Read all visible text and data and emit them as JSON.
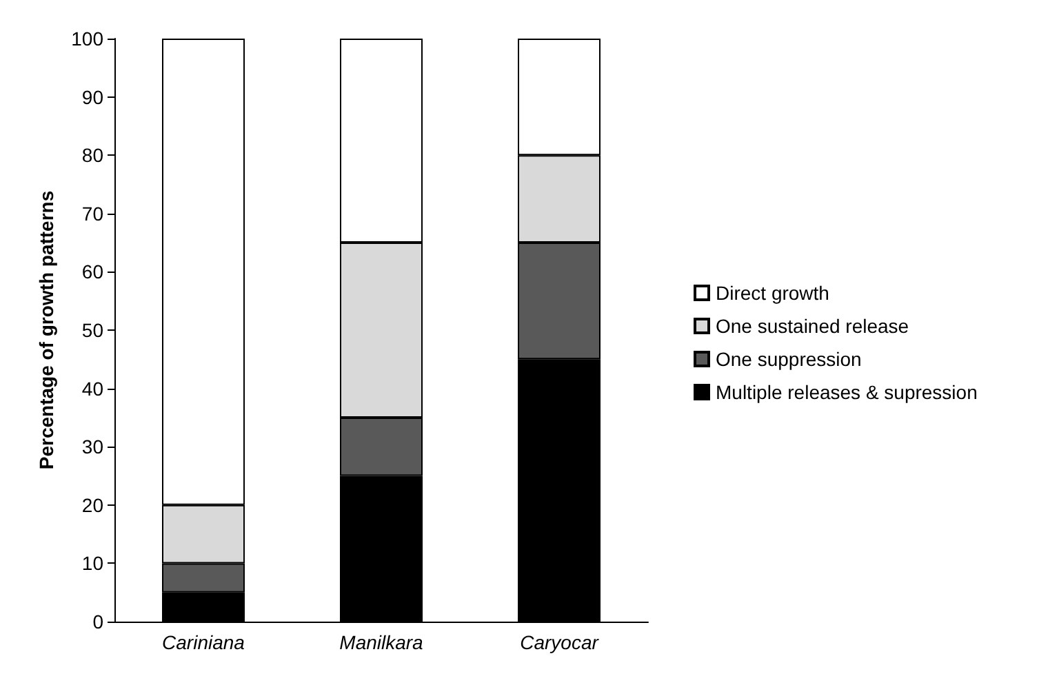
{
  "chart_data": {
    "type": "bar",
    "stacked": true,
    "ylabel": "Percentage of growth patterns",
    "categories": [
      "Cariniana",
      "Manilkara",
      "Caryocar"
    ],
    "series": [
      {
        "name": "Multiple releases & supression",
        "color": "#000000",
        "values": [
          5,
          25,
          45
        ]
      },
      {
        "name": "One suppression",
        "color": "#595959",
        "values": [
          5,
          10,
          20
        ]
      },
      {
        "name": "One sustained release",
        "color": "#d9d9d9",
        "values": [
          10,
          30,
          15
        ]
      },
      {
        "name": "Direct growth",
        "color": "#ffffff",
        "values": [
          80,
          35,
          20
        ]
      }
    ],
    "ylim": [
      0,
      100
    ],
    "yticks": [
      0,
      10,
      20,
      30,
      40,
      50,
      60,
      70,
      80,
      90,
      100
    ],
    "grid": false,
    "legend": "right"
  }
}
